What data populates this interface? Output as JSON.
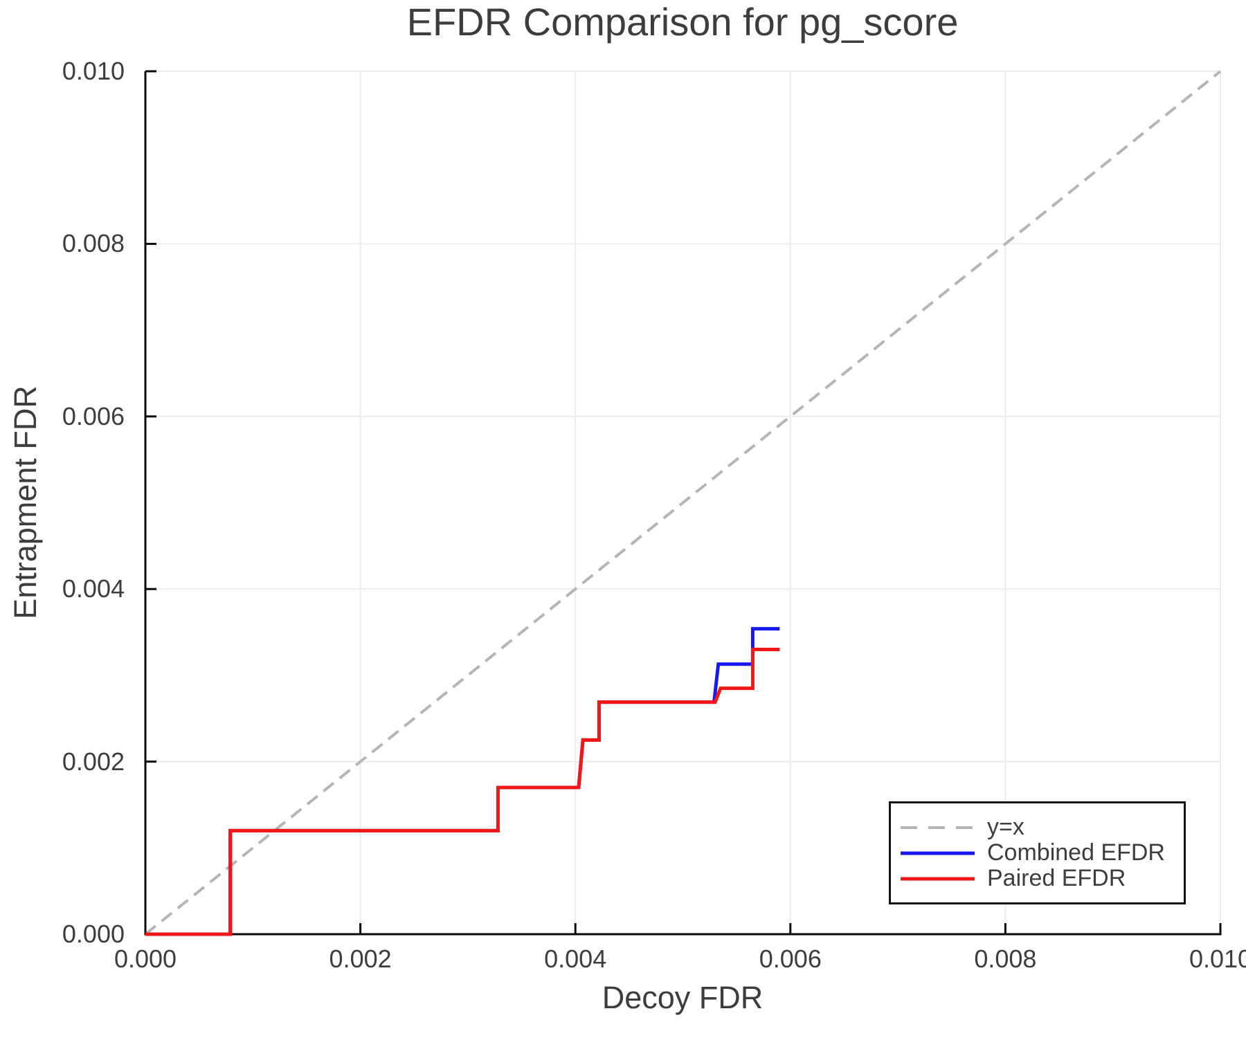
{
  "colors": {
    "background": "#ffffff",
    "text": "#3d3d3d",
    "spine": "#0a0a0a",
    "grid": "#ececec",
    "reference": "#b5b5b5",
    "combined_blue": "#1717f0",
    "paired_red": "#f21717"
  },
  "chart_data": {
    "type": "line",
    "subtype": "step",
    "title": "EFDR Comparison for pg_score",
    "xlabel": "Decoy FDR",
    "ylabel": "Entrapment FDR",
    "xlim": [
      0.0,
      0.01
    ],
    "ylim": [
      0.0,
      0.01
    ],
    "xticks": [
      0.0,
      0.002,
      0.004,
      0.006,
      0.008,
      0.01
    ],
    "yticks": [
      0.0,
      0.002,
      0.004,
      0.006,
      0.008,
      0.01
    ],
    "xtick_labels": [
      "0.000",
      "0.002",
      "0.004",
      "0.006",
      "0.008",
      "0.010"
    ],
    "ytick_labels": [
      "0.000",
      "0.002",
      "0.004",
      "0.006",
      "0.008",
      "0.010"
    ],
    "grid": true,
    "legend_position": "bottom-right",
    "reference_line": {
      "label": "y=x",
      "from": [
        0.0,
        0.0
      ],
      "to": [
        0.01,
        0.01
      ],
      "color": "#b5b5b5",
      "dash": true
    },
    "series": [
      {
        "name": "Combined EFDR",
        "color": "#1717f0",
        "points": [
          [
            0.0,
            0.0
          ],
          [
            0.00079,
            0.0
          ],
          [
            0.00079,
            0.0012
          ],
          [
            0.00328,
            0.0012
          ],
          [
            0.00328,
            0.0017
          ],
          [
            0.00403,
            0.0017
          ],
          [
            0.00407,
            0.00225
          ],
          [
            0.00422,
            0.00225
          ],
          [
            0.00422,
            0.00269
          ],
          [
            0.00529,
            0.00269
          ],
          [
            0.00533,
            0.00313
          ],
          [
            0.00565,
            0.00313
          ],
          [
            0.00565,
            0.00354
          ],
          [
            0.0059,
            0.00354
          ]
        ]
      },
      {
        "name": "Paired EFDR",
        "color": "#f21717",
        "points": [
          [
            0.0,
            0.0
          ],
          [
            0.00079,
            0.0
          ],
          [
            0.00079,
            0.0012
          ],
          [
            0.00328,
            0.0012
          ],
          [
            0.00328,
            0.0017
          ],
          [
            0.00403,
            0.0017
          ],
          [
            0.00407,
            0.00225
          ],
          [
            0.00422,
            0.00225
          ],
          [
            0.00422,
            0.00269
          ],
          [
            0.0053,
            0.00269
          ],
          [
            0.00535,
            0.00285
          ],
          [
            0.00565,
            0.00285
          ],
          [
            0.00565,
            0.0033
          ],
          [
            0.0059,
            0.0033
          ]
        ]
      }
    ],
    "legend": [
      {
        "label": "y=x",
        "color": "#b5b5b5",
        "dash": true
      },
      {
        "label": "Combined EFDR",
        "color": "#1717f0",
        "dash": false
      },
      {
        "label": "Paired EFDR",
        "color": "#f21717",
        "dash": false
      }
    ]
  }
}
